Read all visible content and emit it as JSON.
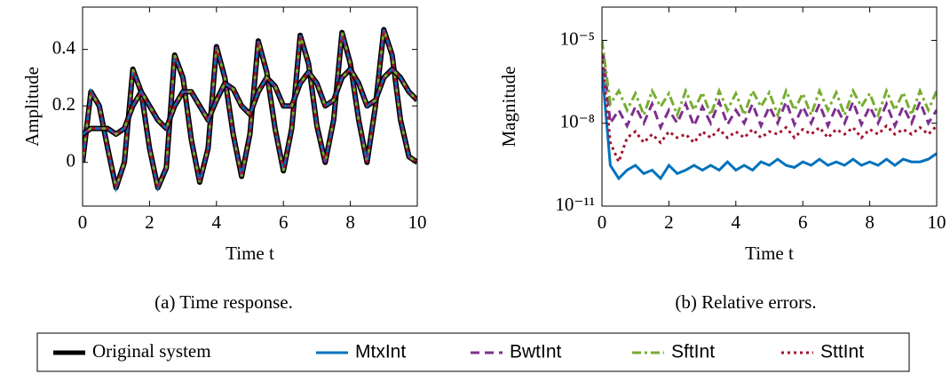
{
  "chart_data": [
    {
      "type": "line",
      "caption": "(a) Time response.",
      "xlabel": "Time t",
      "ylabel": "Amplitude",
      "x": [
        0,
        0.25,
        0.5,
        0.75,
        1,
        1.25,
        1.5,
        1.75,
        2,
        2.25,
        2.5,
        2.75,
        3,
        3.25,
        3.5,
        3.75,
        4,
        4.25,
        4.5,
        4.75,
        5,
        5.25,
        5.5,
        5.75,
        6,
        6.25,
        6.5,
        6.75,
        7,
        7.25,
        7.5,
        7.75,
        8,
        8.25,
        8.5,
        8.75,
        9,
        9.25,
        9.5,
        9.75,
        10
      ],
      "series": [
        {
          "name": "Original system",
          "color": "#000000",
          "values": [
            0,
            0.25,
            0.2,
            0.05,
            -0.09,
            0,
            0.33,
            0.25,
            0.05,
            -0.09,
            -0.02,
            0.38,
            0.3,
            0.08,
            -0.07,
            0.05,
            0.41,
            0.3,
            0.1,
            -0.05,
            0.1,
            0.43,
            0.32,
            0.12,
            -0.03,
            0.12,
            0.45,
            0.35,
            0.13,
            0,
            0.15,
            0.46,
            0.35,
            0.15,
            0,
            0.2,
            0.47,
            0.38,
            0.15,
            0.02,
            0
          ]
        },
        {
          "color": "#000000",
          "values": [
            0.1,
            0.12,
            0.12,
            0.12,
            0.1,
            0.12,
            0.2,
            0.25,
            0.2,
            0.15,
            0.12,
            0.2,
            0.25,
            0.25,
            0.2,
            0.15,
            0.22,
            0.28,
            0.26,
            0.2,
            0.17,
            0.25,
            0.3,
            0.27,
            0.2,
            0.2,
            0.28,
            0.32,
            0.28,
            0.2,
            0.22,
            0.3,
            0.33,
            0.28,
            0.2,
            0.22,
            0.3,
            0.33,
            0.3,
            0.25,
            0.22
          ]
        }
      ],
      "xlim": [
        0,
        10
      ],
      "xticks": [
        0,
        2,
        4,
        6,
        8,
        10
      ],
      "ylim": [
        -0.155,
        0.55
      ],
      "yticks": [
        0,
        0.2,
        0.4
      ]
    },
    {
      "type": "line",
      "caption": "(b) Relative errors.",
      "xlabel": "Time t",
      "ylabel": "Magnitude",
      "log_y": true,
      "x": [
        0,
        0.25,
        0.5,
        0.75,
        1,
        1.25,
        1.5,
        1.75,
        2,
        2.25,
        2.5,
        2.75,
        3,
        3.25,
        3.5,
        3.75,
        4,
        4.25,
        4.5,
        4.75,
        5,
        5.25,
        5.5,
        5.75,
        6,
        6.25,
        6.5,
        6.75,
        7,
        7.25,
        7.5,
        7.75,
        8,
        8.25,
        8.5,
        8.75,
        9,
        9.25,
        9.5,
        9.75,
        10
      ],
      "series": [
        {
          "name": "MtxInt",
          "color": "#0072bd",
          "dash": "solid",
          "values": [
            1e-06,
            3e-10,
            1e-10,
            2e-10,
            3e-10,
            1.5e-10,
            2e-10,
            1e-10,
            3e-10,
            1.5e-10,
            2e-10,
            3e-10,
            2e-10,
            3e-10,
            2e-10,
            4e-10,
            2e-10,
            3e-10,
            2e-10,
            4e-10,
            3e-10,
            5e-10,
            3e-10,
            2.5e-10,
            4e-10,
            3e-10,
            5e-10,
            3e-10,
            4e-10,
            3e-10,
            5e-10,
            3e-10,
            4e-10,
            3e-10,
            5e-10,
            3e-10,
            5e-10,
            4e-10,
            4e-10,
            5e-10,
            8e-10
          ]
        },
        {
          "name": "BwtInt",
          "color": "#7e2f8e",
          "dash": "dashed",
          "values": [
            1e-05,
            1e-08,
            3e-08,
            8e-09,
            4e-08,
            1e-08,
            5e-08,
            7e-09,
            3e-08,
            1e-08,
            5e-08,
            8e-09,
            4e-08,
            1e-08,
            6e-08,
            9e-09,
            3e-08,
            1e-08,
            5e-08,
            8e-09,
            4e-08,
            1e-08,
            6e-08,
            9e-09,
            4e-08,
            1e-08,
            5e-08,
            8e-09,
            4e-08,
            1e-08,
            6e-08,
            9e-09,
            4e-08,
            1e-08,
            5e-08,
            8e-09,
            4e-08,
            1e-08,
            6e-08,
            1e-08,
            3e-08
          ]
        },
        {
          "name": "SftInt",
          "color": "#77ac30",
          "dash": "dashdot",
          "values": [
            1e-05,
            5e-08,
            1.5e-07,
            3e-08,
            1.2e-07,
            2e-08,
            1.5e-07,
            4e-08,
            1.2e-07,
            2e-08,
            1.5e-07,
            3e-08,
            1.3e-07,
            2e-08,
            1.5e-07,
            3e-08,
            1.2e-07,
            2e-08,
            1.5e-07,
            4e-08,
            1.3e-07,
            2e-08,
            1.5e-07,
            3e-08,
            1.2e-07,
            2e-08,
            1.5e-07,
            3e-08,
            1.3e-07,
            2e-08,
            1.5e-07,
            4e-08,
            1.2e-07,
            2e-08,
            1.5e-07,
            3e-08,
            1.3e-07,
            2e-08,
            1.5e-07,
            3e-08,
            1.5e-07
          ]
        },
        {
          "name": "SttInt",
          "color": "#a2142f",
          "dash": "dotted",
          "values": [
            3e-06,
            2e-09,
            4e-10,
            3e-09,
            5e-09,
            2e-09,
            4e-09,
            2e-09,
            5e-09,
            3e-09,
            4e-09,
            2e-09,
            5e-09,
            3e-09,
            6e-09,
            3e-09,
            5e-09,
            3e-09,
            6e-09,
            3e-09,
            5e-09,
            4e-09,
            7e-09,
            3e-09,
            6e-09,
            4e-09,
            7e-09,
            3e-09,
            6e-09,
            4e-09,
            7e-09,
            3e-09,
            6e-09,
            4e-09,
            8e-09,
            4e-09,
            6e-09,
            4e-09,
            7e-09,
            4e-09,
            8e-09
          ]
        }
      ],
      "xlim": [
        0,
        10
      ],
      "xticks": [
        0,
        2,
        4,
        6,
        8,
        10
      ],
      "ylim": [
        1e-11,
        0.00016
      ],
      "yticks": [
        {
          "value": 1e-11,
          "label": "10⁻¹¹"
        },
        {
          "value": 1e-08,
          "label": "10⁻⁸"
        },
        {
          "value": 1e-05,
          "label": "10⁻⁵"
        }
      ]
    }
  ]
}
